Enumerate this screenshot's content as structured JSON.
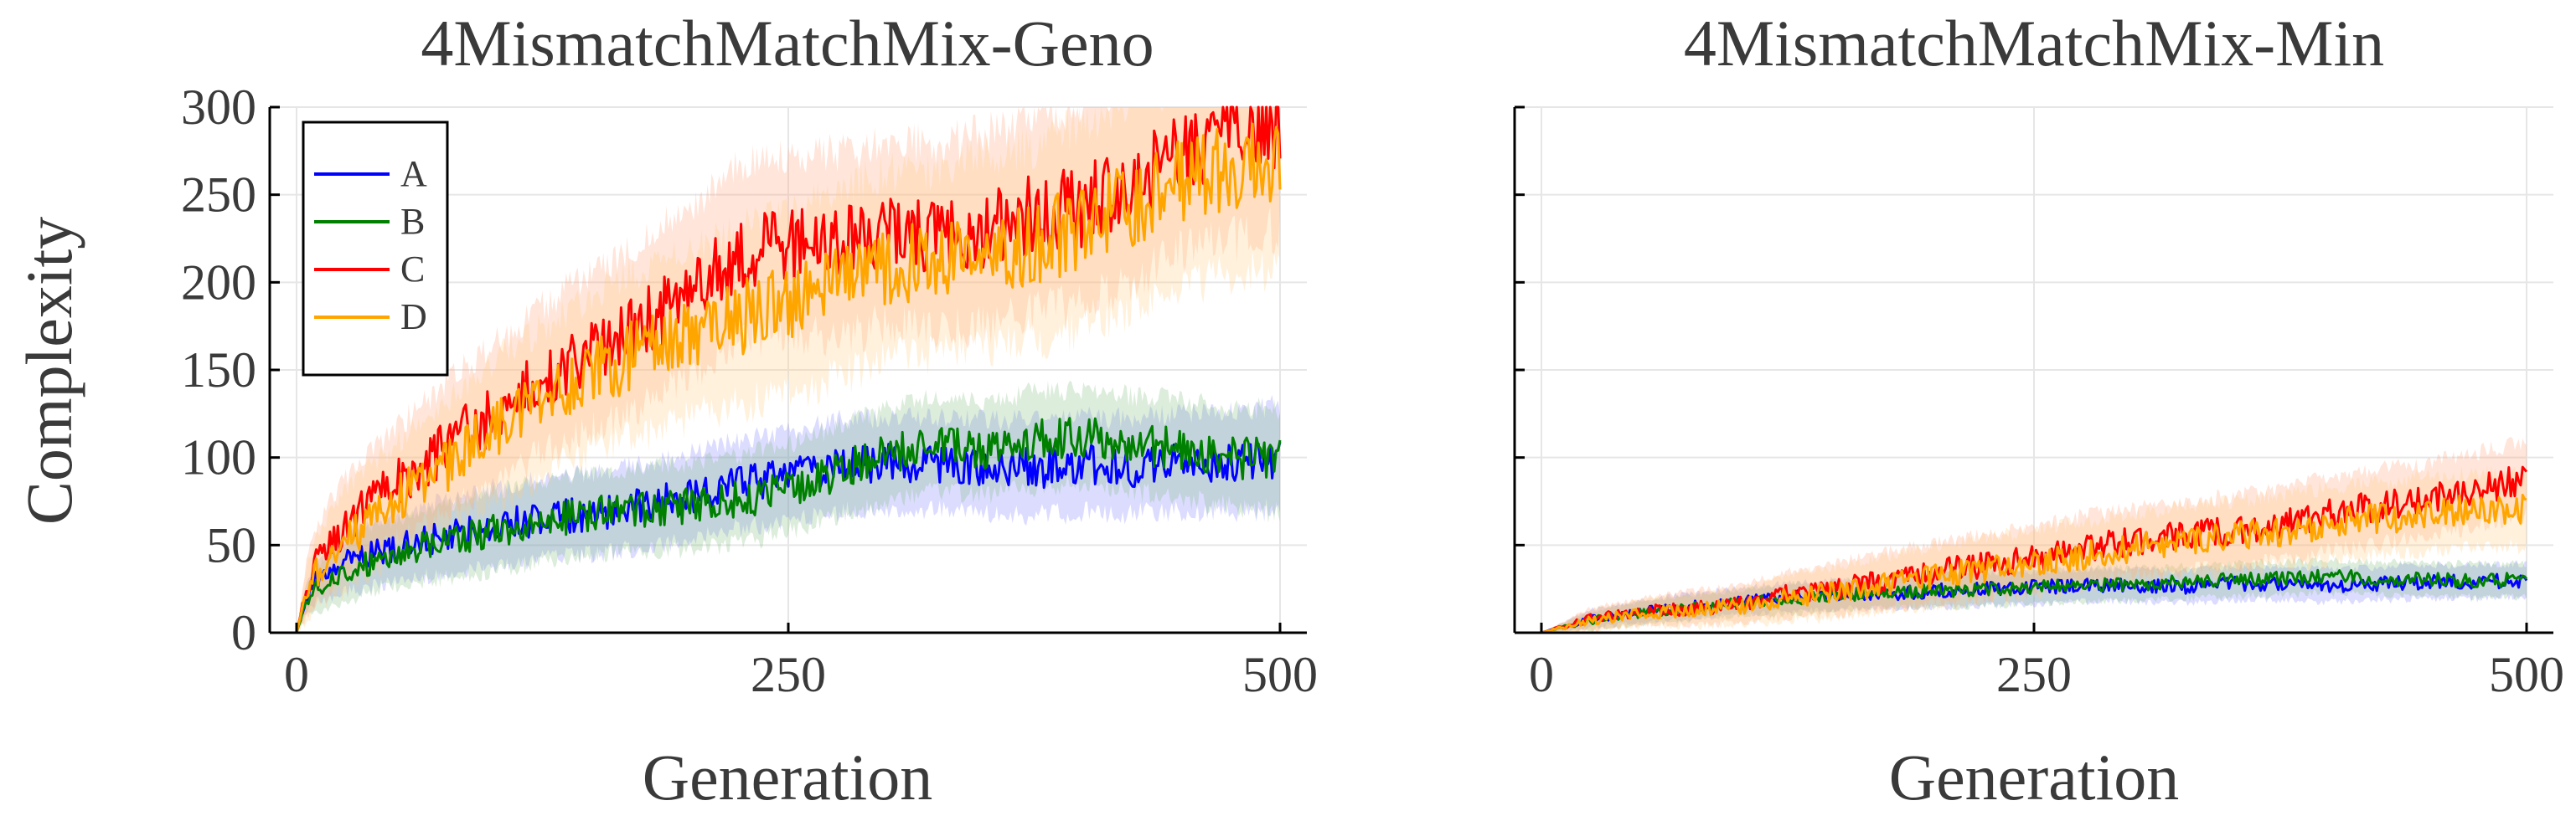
{
  "chart_data": [
    {
      "type": "line",
      "title": "4MismatchMatchMix-Geno",
      "xlabel": "Generation",
      "ylabel": "Complexity",
      "xlim": [
        0,
        500
      ],
      "ylim": [
        0,
        300
      ],
      "xticks": [
        0,
        250,
        500
      ],
      "yticks": [
        0,
        50,
        100,
        150,
        200,
        250,
        300
      ],
      "legend": {
        "position": "top-left",
        "entries": [
          "A",
          "B",
          "C",
          "D"
        ]
      },
      "series": [
        {
          "name": "A",
          "color": "#0000ff",
          "band_color": "#8080ff",
          "x": [
            0,
            5,
            10,
            20,
            30,
            50,
            75,
            100,
            125,
            150,
            175,
            200,
            225,
            250,
            275,
            300,
            325,
            350,
            375,
            400,
            425,
            450,
            475,
            500
          ],
          "values": [
            0,
            20,
            30,
            38,
            42,
            48,
            55,
            60,
            65,
            68,
            72,
            78,
            85,
            90,
            95,
            97,
            96,
            95,
            94,
            96,
            95,
            97,
            98,
            100
          ],
          "band": [
            0,
            8,
            12,
            15,
            17,
            18,
            20,
            22,
            22,
            22,
            23,
            23,
            24,
            24,
            25,
            25,
            25,
            25,
            26,
            26,
            26,
            27,
            27,
            28
          ]
        },
        {
          "name": "B",
          "color": "#008000",
          "band_color": "#80c080",
          "x": [
            0,
            5,
            10,
            20,
            30,
            50,
            75,
            100,
            125,
            150,
            175,
            200,
            225,
            250,
            275,
            300,
            325,
            350,
            375,
            400,
            425,
            450,
            475,
            500
          ],
          "values": [
            0,
            18,
            25,
            33,
            38,
            45,
            52,
            58,
            63,
            68,
            70,
            72,
            76,
            82,
            92,
            102,
            108,
            105,
            110,
            112,
            108,
            105,
            100,
            98
          ],
          "band": [
            0,
            8,
            12,
            15,
            17,
            18,
            20,
            22,
            22,
            22,
            23,
            23,
            24,
            24,
            25,
            25,
            25,
            25,
            26,
            26,
            26,
            27,
            27,
            28
          ]
        },
        {
          "name": "C",
          "color": "#ff0000",
          "band_color": "#ffa07a",
          "x": [
            0,
            5,
            10,
            20,
            30,
            50,
            75,
            100,
            125,
            150,
            175,
            200,
            225,
            250,
            275,
            300,
            325,
            350,
            375,
            400,
            425,
            450,
            475,
            500
          ],
          "values": [
            0,
            25,
            40,
            55,
            65,
            85,
            105,
            125,
            145,
            160,
            175,
            195,
            215,
            222,
            220,
            230,
            225,
            230,
            238,
            245,
            260,
            275,
            285,
            292
          ],
          "band": [
            0,
            15,
            20,
            25,
            28,
            30,
            35,
            38,
            40,
            42,
            45,
            45,
            48,
            48,
            50,
            50,
            50,
            52,
            52,
            55,
            55,
            55,
            58,
            58
          ]
        },
        {
          "name": "D",
          "color": "#ffa500",
          "band_color": "#ffcc80",
          "x": [
            0,
            5,
            10,
            20,
            30,
            50,
            75,
            100,
            125,
            150,
            175,
            200,
            225,
            250,
            275,
            300,
            325,
            350,
            375,
            400,
            425,
            450,
            475,
            500
          ],
          "values": [
            0,
            22,
            35,
            48,
            58,
            75,
            95,
            115,
            132,
            148,
            160,
            170,
            180,
            188,
            198,
            210,
            212,
            218,
            222,
            232,
            245,
            258,
            265,
            268
          ],
          "band": [
            0,
            15,
            20,
            25,
            28,
            30,
            35,
            38,
            40,
            42,
            45,
            45,
            48,
            48,
            50,
            50,
            50,
            52,
            52,
            55,
            55,
            55,
            58,
            58
          ]
        }
      ]
    },
    {
      "type": "line",
      "title": "4MismatchMatchMix-Min",
      "xlabel": "Generation",
      "ylabel": "",
      "xlim": [
        0,
        500
      ],
      "ylim": [
        0,
        300
      ],
      "xticks": [
        0,
        250,
        500
      ],
      "yticks": [
        0,
        50,
        100,
        150,
        200,
        250,
        300
      ],
      "series": [
        {
          "name": "A",
          "color": "#0000ff",
          "band_color": "#8080ff",
          "x": [
            0,
            25,
            50,
            75,
            100,
            125,
            150,
            175,
            200,
            225,
            250,
            275,
            300,
            325,
            350,
            375,
            400,
            425,
            450,
            475,
            500
          ],
          "values": [
            0,
            8,
            12,
            15,
            18,
            20,
            22,
            22,
            24,
            25,
            26,
            27,
            27,
            26,
            28,
            28,
            27,
            28,
            29,
            29,
            30
          ],
          "band": [
            0,
            5,
            6,
            7,
            7,
            8,
            8,
            8,
            9,
            9,
            9,
            9,
            9,
            9,
            9,
            9,
            9,
            9,
            9,
            9,
            9
          ]
        },
        {
          "name": "B",
          "color": "#008000",
          "band_color": "#80c080",
          "x": [
            0,
            25,
            50,
            75,
            100,
            125,
            150,
            175,
            200,
            225,
            250,
            275,
            300,
            325,
            350,
            375,
            400,
            425,
            450,
            475,
            500
          ],
          "values": [
            0,
            7,
            11,
            14,
            17,
            19,
            21,
            23,
            24,
            25,
            26,
            27,
            28,
            29,
            30,
            31,
            32,
            31,
            30,
            30,
            30
          ],
          "band": [
            0,
            5,
            6,
            7,
            7,
            8,
            8,
            8,
            9,
            9,
            9,
            9,
            9,
            9,
            9,
            9,
            9,
            9,
            9,
            9,
            9
          ]
        },
        {
          "name": "C",
          "color": "#ff0000",
          "band_color": "#ffa07a",
          "x": [
            0,
            25,
            50,
            75,
            100,
            125,
            150,
            175,
            200,
            225,
            250,
            275,
            300,
            325,
            350,
            375,
            400,
            425,
            450,
            475,
            500
          ],
          "values": [
            0,
            8,
            12,
            14,
            16,
            22,
            25,
            30,
            35,
            38,
            42,
            48,
            52,
            55,
            58,
            62,
            68,
            72,
            76,
            82,
            88
          ],
          "band": [
            0,
            6,
            7,
            9,
            10,
            12,
            14,
            15,
            16,
            17,
            18,
            18,
            18,
            19,
            19,
            19,
            20,
            20,
            20,
            20,
            20
          ]
        },
        {
          "name": "D",
          "color": "#ffa500",
          "band_color": "#ffcc80",
          "x": [
            0,
            25,
            50,
            75,
            100,
            125,
            150,
            175,
            200,
            225,
            250,
            275,
            300,
            325,
            350,
            375,
            400,
            425,
            450,
            475,
            500
          ],
          "values": [
            0,
            7,
            11,
            13,
            15,
            20,
            23,
            28,
            32,
            36,
            40,
            44,
            48,
            52,
            55,
            58,
            62,
            65,
            68,
            70,
            70
          ],
          "band": [
            0,
            6,
            7,
            9,
            10,
            12,
            14,
            15,
            16,
            17,
            18,
            18,
            18,
            19,
            19,
            19,
            20,
            20,
            20,
            20,
            20
          ]
        }
      ]
    }
  ]
}
